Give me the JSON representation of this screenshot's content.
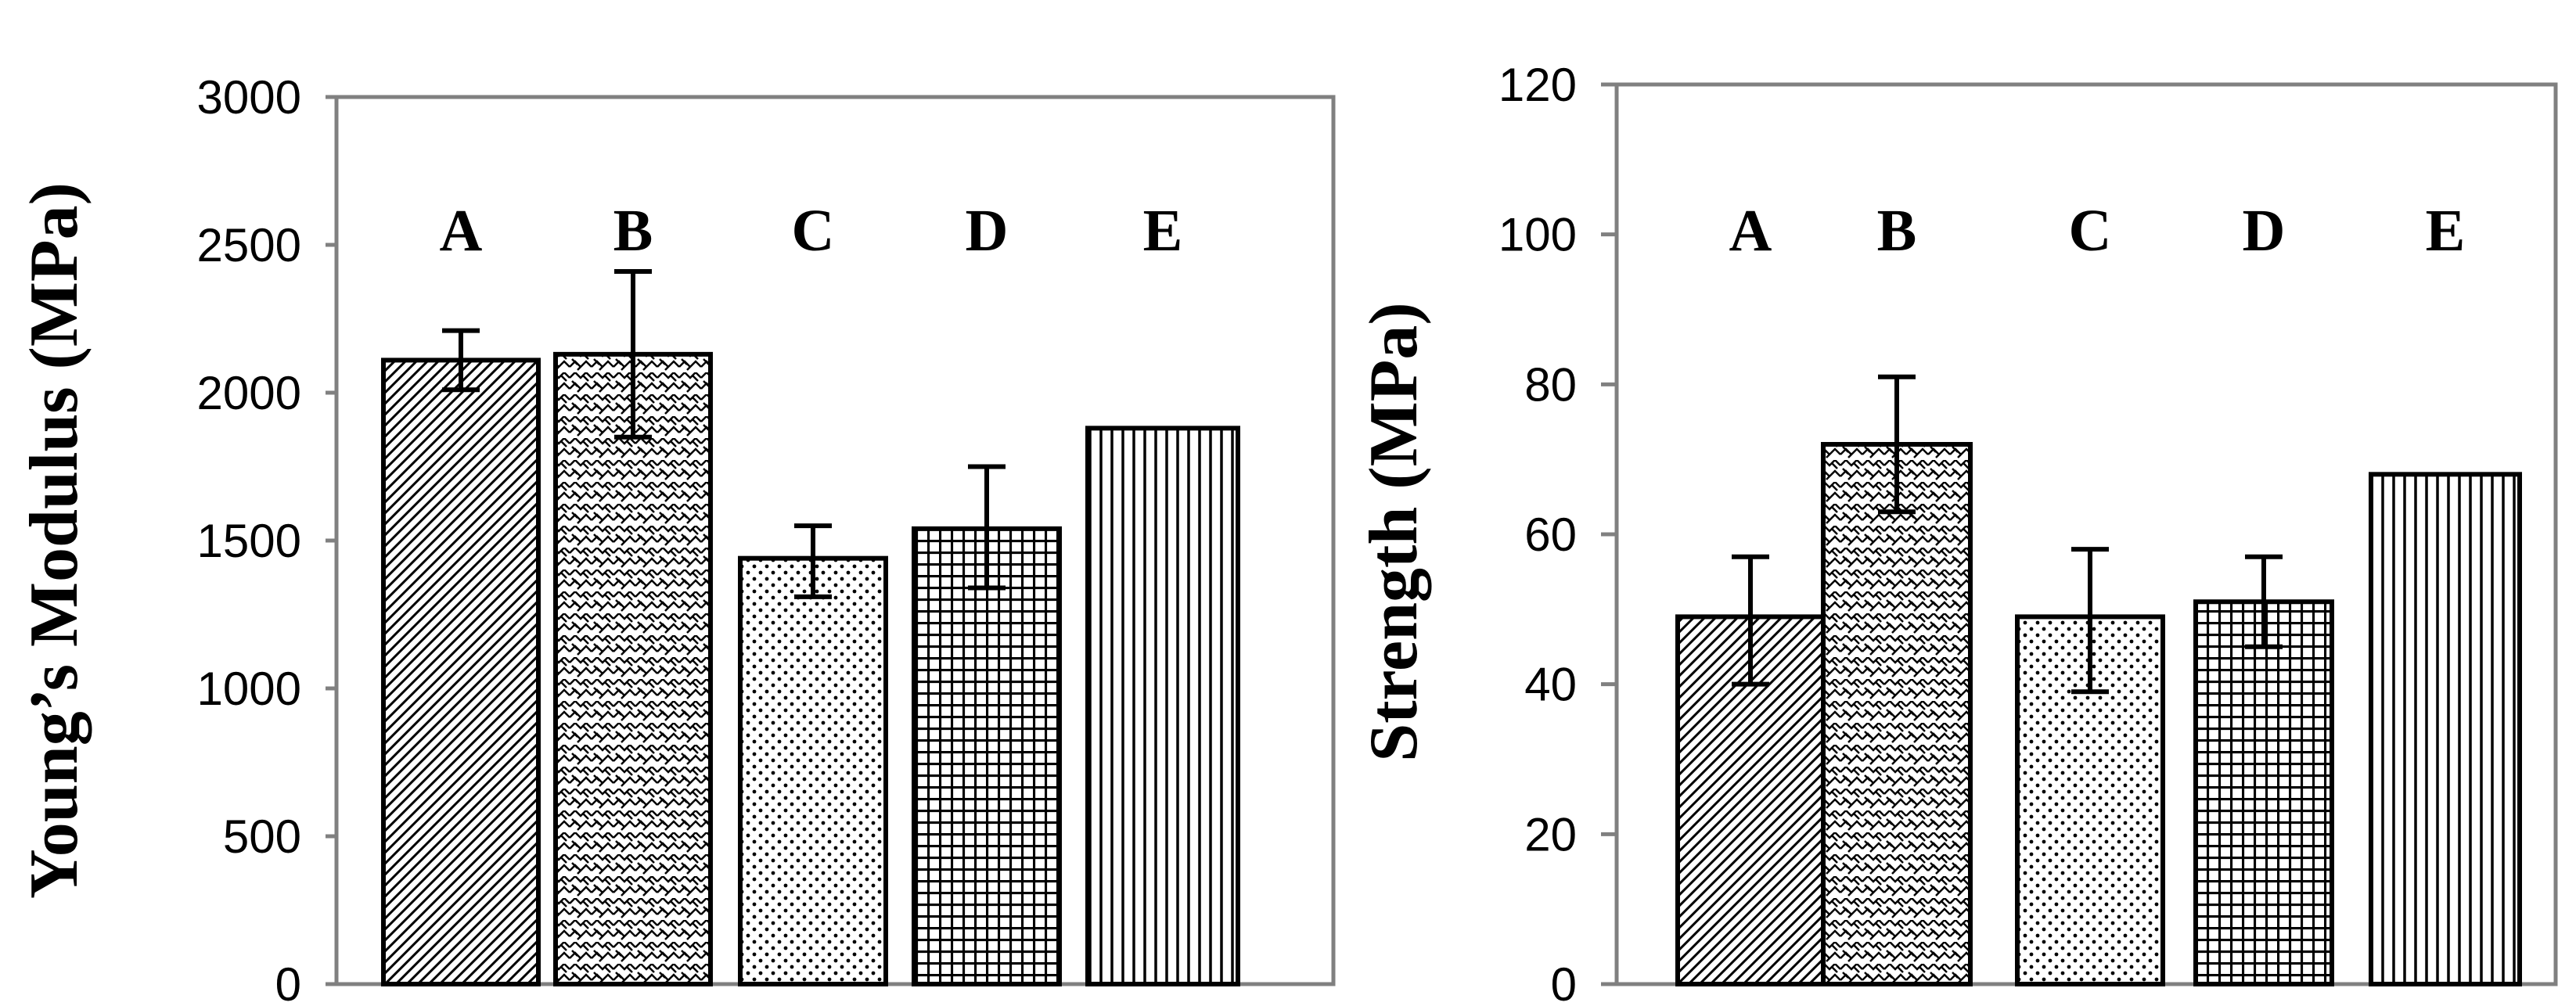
{
  "chart_data": [
    {
      "type": "bar",
      "title": "",
      "xlabel": "",
      "ylabel": "Young’s Modulus (MPa)",
      "ylim": [
        0,
        3000
      ],
      "yticks": [
        "0",
        "500",
        "1000",
        "1500",
        "2000",
        "2500",
        "3000"
      ],
      "grid": false,
      "categories": [
        "A",
        "B",
        "C",
        "D",
        "E"
      ],
      "values": [
        2110,
        2130,
        1440,
        1540,
        1880
      ],
      "error_low": [
        2010,
        1850,
        1310,
        1340,
        null
      ],
      "error_high": [
        2210,
        2410,
        1550,
        1750,
        null
      ]
    },
    {
      "type": "bar",
      "title": "",
      "xlabel": "",
      "ylabel": "Strength (MPa)",
      "ylim": [
        0,
        120
      ],
      "yticks": [
        "0",
        "20",
        "40",
        "60",
        "80",
        "100",
        "120"
      ],
      "grid": false,
      "categories": [
        "A",
        "B",
        "C",
        "D",
        "E"
      ],
      "values": [
        49,
        72,
        49,
        51,
        68
      ],
      "error_low": [
        40,
        63,
        39,
        45,
        null
      ],
      "error_high": [
        57,
        81,
        58,
        57,
        null
      ]
    }
  ]
}
